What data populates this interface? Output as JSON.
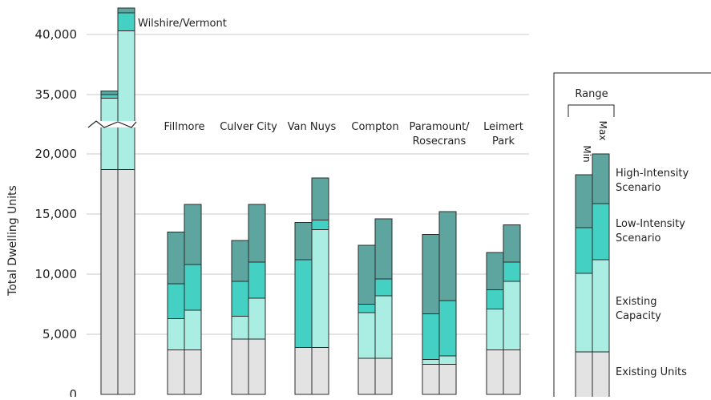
{
  "chart_data": {
    "type": "bar",
    "title": "",
    "xlabel": "",
    "ylabel": "Total Dwelling Units",
    "y_axis_break": {
      "from": 22500,
      "to": 32500
    },
    "ylim": [
      0,
      42000
    ],
    "yticks": [
      0,
      5000,
      10000,
      15000,
      20000,
      35000,
      40000
    ],
    "ytick_labels": [
      "0",
      "5,000",
      "10,000",
      "15,000",
      "20,000",
      "35,000",
      "40,000"
    ],
    "grid": true,
    "bar_pair_labels": [
      "Min",
      "Max"
    ],
    "layers": [
      "Existing Units",
      "Existing Capacity",
      "Low-Intensity Scenario",
      "High-Intensity Scenario"
    ],
    "colors": {
      "existing_units": "#e3e3e3",
      "existing_capacity": "#aaeee3",
      "low_intensity": "#44d1c4",
      "high_intensity": "#5da59e",
      "outline": "#2b2b2b",
      "grid": "#c8c8c8"
    },
    "categories": [
      {
        "name": "Wilshire/Vermont",
        "lines": [
          "Wilshire/Vermont"
        ],
        "min": {
          "existing_units": 18700,
          "existing_capacity": 16000,
          "low_intensity": 300,
          "high_intensity": 300
        },
        "max": {
          "existing_units": 18700,
          "existing_capacity": 21600,
          "low_intensity": 1500,
          "high_intensity": 400
        }
      },
      {
        "name": "Fillmore",
        "lines": [
          "Fillmore"
        ],
        "min": {
          "existing_units": 3700,
          "existing_capacity": 2600,
          "low_intensity": 2900,
          "high_intensity": 4300
        },
        "max": {
          "existing_units": 3700,
          "existing_capacity": 3300,
          "low_intensity": 3800,
          "high_intensity": 5000
        }
      },
      {
        "name": "Culver City",
        "lines": [
          "Culver City"
        ],
        "min": {
          "existing_units": 4600,
          "existing_capacity": 1900,
          "low_intensity": 2900,
          "high_intensity": 3400
        },
        "max": {
          "existing_units": 4600,
          "existing_capacity": 3400,
          "low_intensity": 3000,
          "high_intensity": 4800
        }
      },
      {
        "name": "Van Nuys",
        "lines": [
          "Van Nuys"
        ],
        "min": {
          "existing_units": 3900,
          "existing_capacity": 0,
          "low_intensity": 7300,
          "high_intensity": 3100
        },
        "max": {
          "existing_units": 3900,
          "existing_capacity": 9800,
          "low_intensity": 800,
          "high_intensity": 3500
        }
      },
      {
        "name": "Compton",
        "lines": [
          "Compton"
        ],
        "min": {
          "existing_units": 3000,
          "existing_capacity": 3800,
          "low_intensity": 700,
          "high_intensity": 4900
        },
        "max": {
          "existing_units": 3000,
          "existing_capacity": 5200,
          "low_intensity": 1400,
          "high_intensity": 5000
        }
      },
      {
        "name": "Paramount/ Rosecrans",
        "lines": [
          "Paramount/",
          "Rosecrans"
        ],
        "min": {
          "existing_units": 2500,
          "existing_capacity": 400,
          "low_intensity": 3800,
          "high_intensity": 6600
        },
        "max": {
          "existing_units": 2500,
          "existing_capacity": 700,
          "low_intensity": 4600,
          "high_intensity": 7400
        }
      },
      {
        "name": "Leimert Park",
        "lines": [
          "Leimert",
          "Park"
        ],
        "min": {
          "existing_units": 3700,
          "existing_capacity": 3400,
          "low_intensity": 1600,
          "high_intensity": 3100
        },
        "max": {
          "existing_units": 3700,
          "existing_capacity": 5700,
          "low_intensity": 1600,
          "high_intensity": 3100
        }
      }
    ],
    "legend": {
      "title": "Range",
      "min_label": "Min",
      "max_label": "Max",
      "placement": "right",
      "items": [
        {
          "key": "high_intensity",
          "lines": [
            "High-Intensity",
            "Scenario"
          ]
        },
        {
          "key": "low_intensity",
          "lines": [
            "Low-Intensity",
            "Scenario"
          ]
        },
        {
          "key": "existing_capacity",
          "lines": [
            "Existing",
            "Capacity"
          ]
        },
        {
          "key": "existing_units",
          "lines": [
            "Existing Units"
          ]
        }
      ]
    }
  }
}
